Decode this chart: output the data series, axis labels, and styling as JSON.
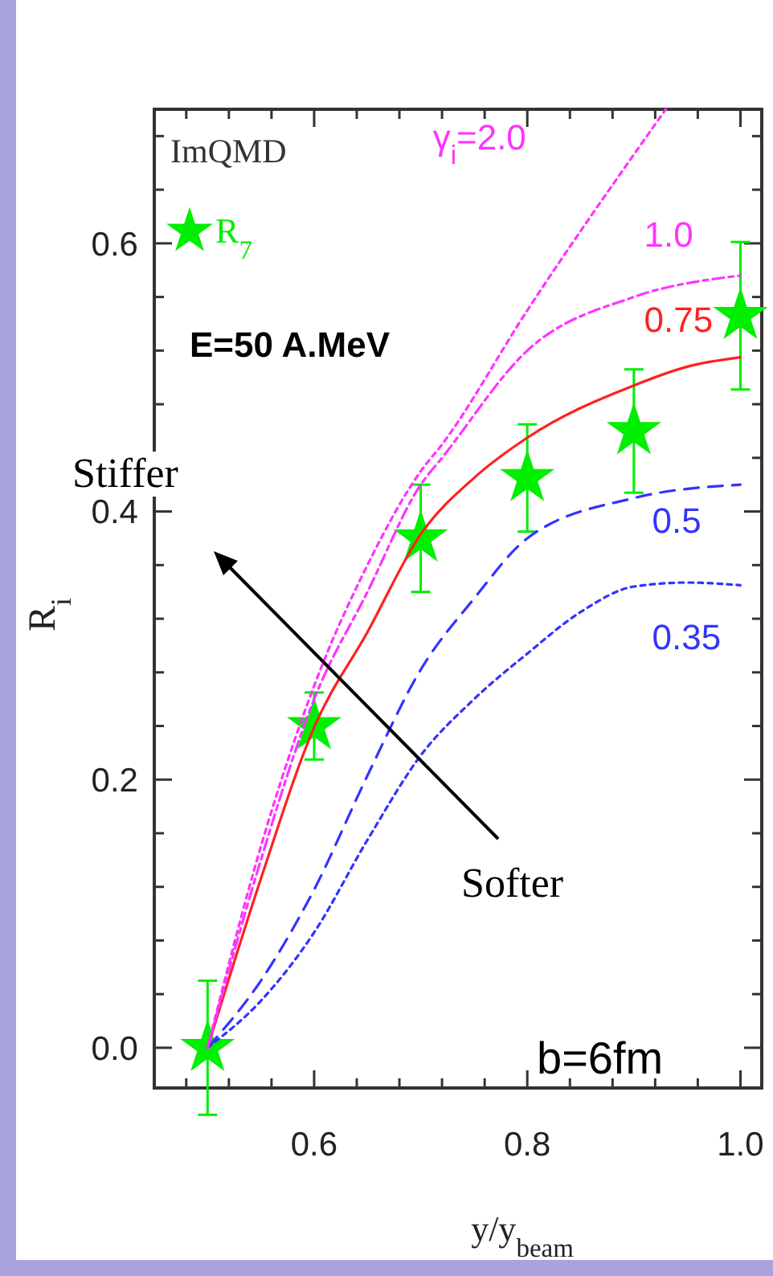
{
  "chart_data": {
    "type": "line",
    "xlabel": "y/y$_{beam}$",
    "ylabel": "R$_{i}$",
    "legend_title": "ImQMD",
    "legend": "top left",
    "xlim": [
      0.45,
      1.02
    ],
    "ylim": [
      -0.03,
      0.7
    ],
    "xticks": [
      {
        "value": 0.48,
        "label": null
      },
      {
        "value": 0.52,
        "label": null
      },
      {
        "value": 0.56,
        "label": null
      },
      0.6,
      {
        "value": 0.64,
        "label": null
      },
      {
        "value": 0.68,
        "label": null
      },
      {
        "value": 0.72,
        "label": null
      },
      {
        "value": 0.76,
        "label": null
      },
      0.8,
      {
        "value": 0.84,
        "label": null
      },
      {
        "value": 0.88,
        "label": null
      },
      {
        "value": 0.92,
        "label": null
      },
      {
        "value": 0.96,
        "label": null
      },
      {
        "value": 1.0,
        "label": "1.0"
      }
    ],
    "yticks": [
      {
        "value": 0.0,
        "label": "0.0"
      },
      {
        "value": 0.04,
        "label": null
      },
      {
        "value": 0.08,
        "label": null
      },
      {
        "value": 0.12,
        "label": null
      },
      {
        "value": 0.16,
        "label": null
      },
      0.2,
      {
        "value": 0.24,
        "label": null
      },
      {
        "value": 0.28,
        "label": null
      },
      {
        "value": 0.32,
        "label": null
      },
      {
        "value": 0.36,
        "label": null
      },
      0.4,
      {
        "value": 0.44,
        "label": null
      },
      {
        "value": 0.48,
        "label": null
      },
      {
        "value": 0.52,
        "label": null
      },
      {
        "value": 0.56,
        "label": null
      },
      0.6,
      {
        "value": 0.64,
        "label": null
      },
      {
        "value": 0.68,
        "label": null
      }
    ],
    "series": [
      {
        "name": "γ$_{i}$=2.0",
        "color": "#ff33ff",
        "line_style": "dotted",
        "x": [
          0.5,
          0.55,
          0.6,
          0.65,
          0.7,
          0.72,
          0.8,
          0.93
        ],
        "values": [
          0,
          0.15,
          0.27,
          0.36,
          0.43,
          0.45,
          0.55,
          0.7
        ]
      },
      {
        "name": "1.0",
        "color": "#ff33ff",
        "line_style": "dashdot",
        "x": [
          0.5,
          0.55,
          0.6,
          0.65,
          0.7,
          0.72,
          0.8,
          0.9,
          1.0
        ],
        "values": [
          0,
          0.14,
          0.26,
          0.34,
          0.42,
          0.44,
          0.52,
          0.56,
          0.576
        ]
      },
      {
        "name": "0.75",
        "color": "#ff2020",
        "line_style": "solid",
        "x": [
          0.5,
          0.55,
          0.6,
          0.65,
          0.7,
          0.75,
          0.8,
          0.9,
          0.95,
          1.0
        ],
        "values": [
          0,
          0.126,
          0.239,
          0.31,
          0.383,
          0.425,
          0.455,
          0.494,
          0.508,
          0.515
        ]
      },
      {
        "name": "0.5",
        "color": "#3333ff",
        "line_style": "dashed",
        "x": [
          0.5,
          0.55,
          0.6,
          0.65,
          0.7,
          0.75,
          0.8,
          0.9,
          1.0
        ],
        "values": [
          0,
          0.05,
          0.118,
          0.203,
          0.282,
          0.335,
          0.38,
          0.41,
          0.42
        ]
      },
      {
        "name": "0.35",
        "color": "#3333ff",
        "line_style": "dotted",
        "x": [
          0.5,
          0.55,
          0.6,
          0.65,
          0.7,
          0.75,
          0.8,
          0.85,
          0.9,
          0.95,
          1.0
        ],
        "values": [
          0,
          0.035,
          0.086,
          0.155,
          0.218,
          0.26,
          0.294,
          0.325,
          0.344,
          0.347,
          0.345
        ]
      },
      {
        "name": "R$_{7}$",
        "type": "scatter",
        "marker": "star",
        "color": "#00ee00",
        "x": [
          0.5,
          0.6,
          0.7,
          0.8,
          0.9,
          1.0
        ],
        "values": [
          0,
          0.24,
          0.38,
          0.425,
          0.46,
          0.546
        ],
        "errors": [
          0.05,
          0.025,
          0.04,
          0.04,
          0.046,
          0.055
        ]
      }
    ],
    "annotations": [
      "E=50  A.MeV",
      "Stiffer",
      "Softer",
      "b=6fm"
    ]
  }
}
